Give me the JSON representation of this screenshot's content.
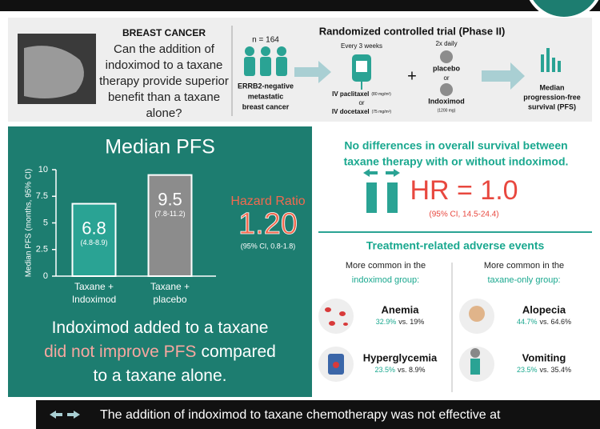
{
  "question": {
    "title": "BREAST CANCER",
    "lines": [
      "Can the addition of",
      "indoximod to a taxane",
      "therapy provide superior",
      "benefit than a taxane",
      "alone?"
    ]
  },
  "trial": {
    "title": "Randomized controlled trial (Phase II)",
    "n": "n = 164",
    "population": [
      "ERRB2-negative",
      "metastatic",
      "breast cancer"
    ],
    "schedule": "Every 3 weeks",
    "drugs": [
      {
        "name": "IV paclitaxel",
        "dose": "(80 mg/m²)"
      },
      {
        "name": "IV docetaxel",
        "dose": "(75 mg/m²)"
      }
    ],
    "or": "or",
    "plus": "+",
    "frequency": "2x daily",
    "arms": [
      "placebo",
      "Indoximod"
    ],
    "arm_dose": "(1200 mg)",
    "endpoint": [
      "Median",
      "progression-free",
      "survival (PFS)"
    ]
  },
  "chart_data": {
    "type": "bar",
    "title": "Median PFS",
    "ylabel": "Median PFS (months, 95% CI)",
    "categories": [
      [
        "Taxane +",
        "Indoximod"
      ],
      [
        "Taxane +",
        "placebo"
      ]
    ],
    "values": [
      6.8,
      9.5
    ],
    "ci_labels": [
      "(4.8-8.9)",
      "(7.8-11.2)"
    ],
    "colors": [
      "#2aa394",
      "#8c8c8c"
    ],
    "ylim": [
      0,
      10
    ],
    "yticks": [
      0,
      2.5,
      5,
      7.5,
      10
    ]
  },
  "hazard": {
    "title": "Hazard Ratio",
    "value": "1.20",
    "ci": "(95% CI, 0.8-1.8)"
  },
  "conclusion": {
    "lines": [
      [
        "Indoximod added to a taxane"
      ],
      [
        "did not improve PFS",
        "compared"
      ],
      [
        "to a taxane alone."
      ]
    ]
  },
  "survival": {
    "lines": [
      "No differences in overall survival between",
      "taxane therapy with or without indoximod."
    ],
    "hr": "HR = 1.0",
    "ci": "(95% CI, 14.5-24.4)"
  },
  "adverse": {
    "title": "Treatment-related adverse events",
    "groups": [
      {
        "lead": "More common in the",
        "group": "indoximod group:",
        "events": [
          {
            "name": "Anemia",
            "rate": "32.9%",
            "compare": "vs. 19%"
          },
          {
            "name": "Hyperglycemia",
            "rate": "23.5%",
            "compare": "vs. 8.9%"
          }
        ]
      },
      {
        "lead": "More common in the",
        "group": "taxane-only group:",
        "events": [
          {
            "name": "Alopecia",
            "rate": "44.7%",
            "compare": "vs. 64.6%"
          },
          {
            "name": "Vomiting",
            "rate": "23.5%",
            "compare": "vs. 35.4%"
          }
        ]
      }
    ]
  },
  "footer": "The addition of indoximod to taxane chemotherapy was not effective at"
}
